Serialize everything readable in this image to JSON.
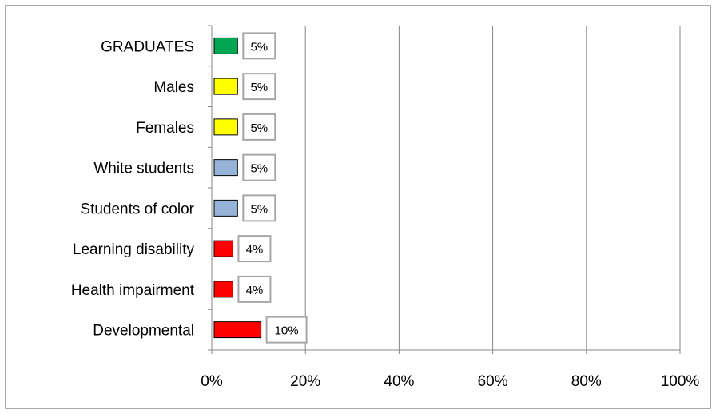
{
  "chart_data": {
    "type": "bar",
    "orientation": "horizontal",
    "categories": [
      "GRADUATES",
      "Males",
      "Females",
      "White students",
      "Students of color",
      "Learning disability",
      "Health impairment",
      "Developmental"
    ],
    "values": [
      5,
      5,
      5,
      5,
      5,
      4,
      4,
      10
    ],
    "data_labels": [
      "5%",
      "5%",
      "5%",
      "5%",
      "5%",
      "4%",
      "4%",
      "10%"
    ],
    "bar_colors": [
      "#00a651",
      "#ffff00",
      "#ffff00",
      "#95b3d7",
      "#95b3d7",
      "#ff0000",
      "#ff0000",
      "#ff0000"
    ],
    "xlim": [
      0,
      100
    ],
    "x_ticks": [
      "0%",
      "20%",
      "40%",
      "60%",
      "80%",
      "100%"
    ],
    "x_tick_values": [
      0,
      20,
      40,
      60,
      80,
      100
    ],
    "grid": true,
    "legend": "none",
    "title": "",
    "xlabel": "",
    "ylabel": ""
  }
}
